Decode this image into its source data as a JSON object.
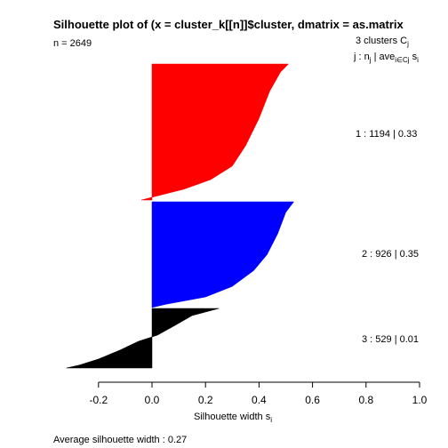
{
  "chart_data": {
    "type": "silhouette",
    "title": "Silhouette plot of (x = cluster_k[[n]]$cluster, dmatrix = as.matrix",
    "n_label": "n = 2649",
    "header": {
      "clusters_text": "3  clusters  C",
      "clusters_sub": "j",
      "cols_j": "j :  n",
      "cols_nsub": "j",
      "cols_ave": " | ave",
      "cols_avesub": "i∈Cj",
      "cols_s": "  s",
      "cols_ssub": "i"
    },
    "xlabel": "Silhouette width s",
    "xlabel_sub": "i",
    "xlim": [
      -0.3,
      1.0
    ],
    "xticks": [
      -0.2,
      0.0,
      0.2,
      0.4,
      0.6,
      0.8,
      1.0
    ],
    "xtick_labels": [
      "-0.2",
      "0.0",
      "0.2",
      "0.4",
      "0.6",
      "0.8",
      "1.0"
    ],
    "clusters": [
      {
        "label": "1 :   1194  |  0.33",
        "n": 1194,
        "avg": 0.33,
        "color": "#ff0000",
        "max": 0.51,
        "min": -0.04,
        "profile": [
          [
            0,
            0.51
          ],
          [
            0.06,
            0.48
          ],
          [
            0.2,
            0.44
          ],
          [
            0.4,
            0.4
          ],
          [
            0.6,
            0.35
          ],
          [
            0.75,
            0.3
          ],
          [
            0.85,
            0.22
          ],
          [
            0.92,
            0.12
          ],
          [
            0.97,
            0.02
          ],
          [
            1,
            -0.04
          ]
        ]
      },
      {
        "label": "2 :   926  |  0.35",
        "n": 926,
        "avg": 0.35,
        "color": "#0000ff",
        "max": 0.53,
        "min": 0.0,
        "profile": [
          [
            0,
            0.53
          ],
          [
            0.1,
            0.5
          ],
          [
            0.3,
            0.47
          ],
          [
            0.5,
            0.43
          ],
          [
            0.65,
            0.38
          ],
          [
            0.8,
            0.3
          ],
          [
            0.9,
            0.2
          ],
          [
            0.97,
            0.05
          ],
          [
            1,
            0.0
          ]
        ]
      },
      {
        "label": "3 :   529  |  0.01",
        "n": 529,
        "avg": 0.01,
        "color": "#000000",
        "max": 0.25,
        "min": -0.32,
        "profile": [
          [
            0,
            0.25
          ],
          [
            0.12,
            0.15
          ],
          [
            0.3,
            0.08
          ],
          [
            0.45,
            0.02
          ],
          [
            0.55,
            -0.05
          ],
          [
            0.7,
            -0.12
          ],
          [
            0.85,
            -0.2
          ],
          [
            0.95,
            -0.27
          ],
          [
            1,
            -0.32
          ]
        ]
      }
    ],
    "average_label": "Average silhouette width :  0.27",
    "average": 0.27
  }
}
